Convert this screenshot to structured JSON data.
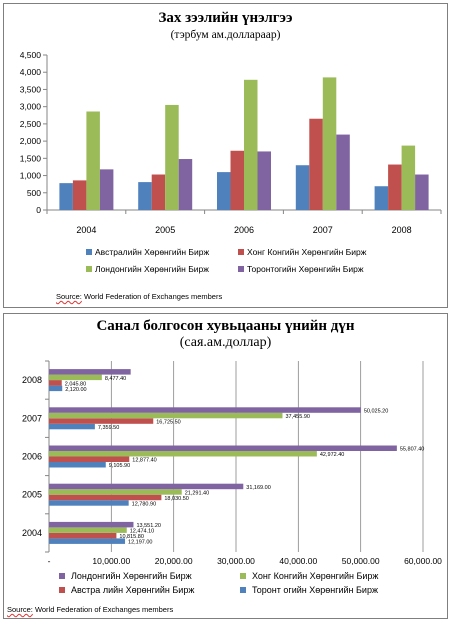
{
  "chart_data": [
    {
      "type": "bar",
      "orientation": "vertical",
      "title": "Зах зээлийн үнэлгээ",
      "subtitle": "(тэрбум  ам.доллараар)",
      "categories": [
        "2004",
        "2005",
        "2006",
        "2007",
        "2008"
      ],
      "series": [
        {
          "name": "Австралийн  Хөрөнгийн  Бирж",
          "color": "#4f81bd",
          "values": [
            780,
            810,
            1100,
            1300,
            690
          ]
        },
        {
          "name": "Хонг Конгийн Хөрөнгийн  Бирж",
          "color": "#c0504d",
          "values": [
            860,
            1030,
            1720,
            2650,
            1320
          ]
        },
        {
          "name": "Лондонгийн  Хөрөнгийн  Бирж",
          "color": "#9bbb59",
          "values": [
            2860,
            3050,
            3780,
            3850,
            1870
          ]
        },
        {
          "name": "Торонтогийн Хөрөнгийн Бирж",
          "color": "#8064a2",
          "values": [
            1180,
            1480,
            1700,
            2190,
            1030
          ]
        }
      ],
      "ylim": [
        0,
        4500
      ],
      "yticks": [
        "0",
        "500",
        "1,000",
        "1,500",
        "2,000",
        "2,500",
        "3,000",
        "3,500",
        "4,000",
        "4,500"
      ],
      "legend": "bottom",
      "grid": false,
      "source_label": "Source:",
      "source_text": " World Federation  of Exchanges  members"
    },
    {
      "type": "bar",
      "orientation": "horizontal",
      "title": "Санал болгосон хувьцааны үнийн дүн",
      "subtitle": "(сая.ам.доллар)",
      "categories": [
        "2004",
        "2005",
        "2006",
        "2007",
        "2008"
      ],
      "series": [
        {
          "name": "Торонт огийн  Хөрөнгийн  Бирж",
          "color": "#4f81bd",
          "values": [
            12197.0,
            12780.9,
            9105.9,
            7359.5,
            2120.0
          ],
          "labels": [
            "12,197.00",
            "12,780.90",
            "9,105.90",
            "7,359.50",
            "2,120.00"
          ]
        },
        {
          "name": "Австра лийн Хөрөнгийн  Бирж",
          "color": "#c0504d",
          "values": [
            10815.8,
            18030.5,
            12877.4,
            16725.5,
            2045.8
          ],
          "labels": [
            "10,815.80",
            "18,030.50",
            "12,877.40",
            "16,725.50",
            "2,045.80"
          ]
        },
        {
          "name": "Хонг Конгийн  Хөрөнгийн  Бирж",
          "color": "#9bbb59",
          "values": [
            12474.1,
            21291.4,
            42972.4,
            37455.9,
            8477.4
          ],
          "labels": [
            "12,474.10",
            "21,291.40",
            "42,972.40",
            "37,455.90",
            "8,477.40"
          ]
        },
        {
          "name": "Лондонгийн  Хөрөнгийн  Бирж",
          "color": "#8064a2",
          "values": [
            13551.2,
            31169.0,
            55807.4,
            50025.2,
            13101.1
          ],
          "labels": [
            "13,551.20",
            "31,169.00",
            "55,807.40",
            "50,025.20",
            ""
          ]
        }
      ],
      "xlim": [
        0,
        60000
      ],
      "xticks": [
        "-",
        "10,000.00",
        "20,000.00",
        "30,000.00",
        "40,000.00",
        "50,000.00",
        "60,000.00"
      ],
      "legend": "bottom",
      "grid": true,
      "source_label": "Source:",
      "source_text": " World  Federation of Exchanges  members"
    }
  ]
}
